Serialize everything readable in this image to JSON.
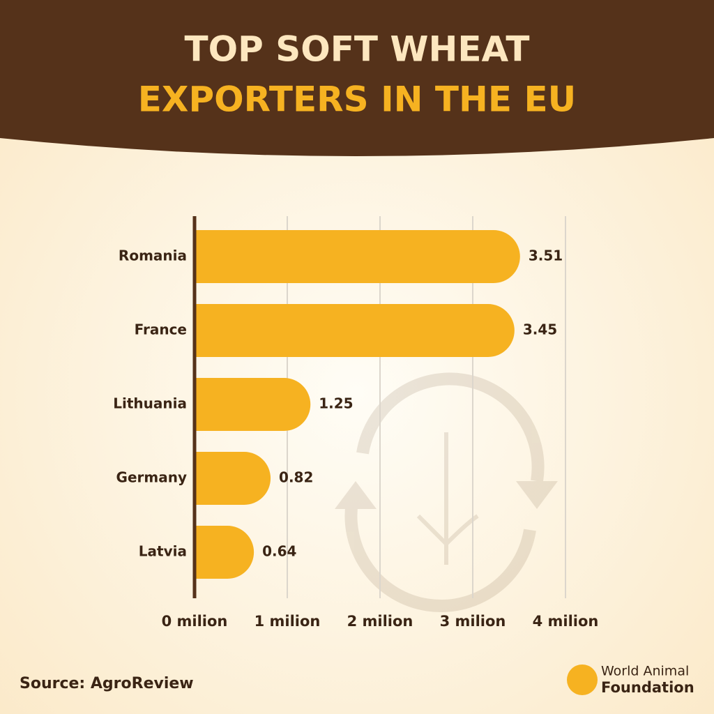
{
  "chart_data": {
    "type": "hbar",
    "title_lines": [
      "TOP SOFT WHEAT",
      "EXPORTERS IN THE EU"
    ],
    "categories": [
      "Romania",
      "France",
      "Lithuania",
      "Germany",
      "Latvia"
    ],
    "values": [
      3.51,
      3.45,
      1.25,
      0.82,
      0.64
    ],
    "color": "#f6b221",
    "xlim": [
      0,
      4
    ],
    "xticks": [
      {
        "value": 0,
        "label": "0 milion"
      },
      {
        "value": 1,
        "label": "1 milion"
      },
      {
        "value": 2,
        "label": "2 milion"
      },
      {
        "value": 3,
        "label": "3 milion"
      },
      {
        "value": 4,
        "label": "4 milion"
      }
    ],
    "grid": true,
    "source": "Source: AgroReview",
    "logo": [
      "World Animal",
      "Foundation"
    ]
  }
}
